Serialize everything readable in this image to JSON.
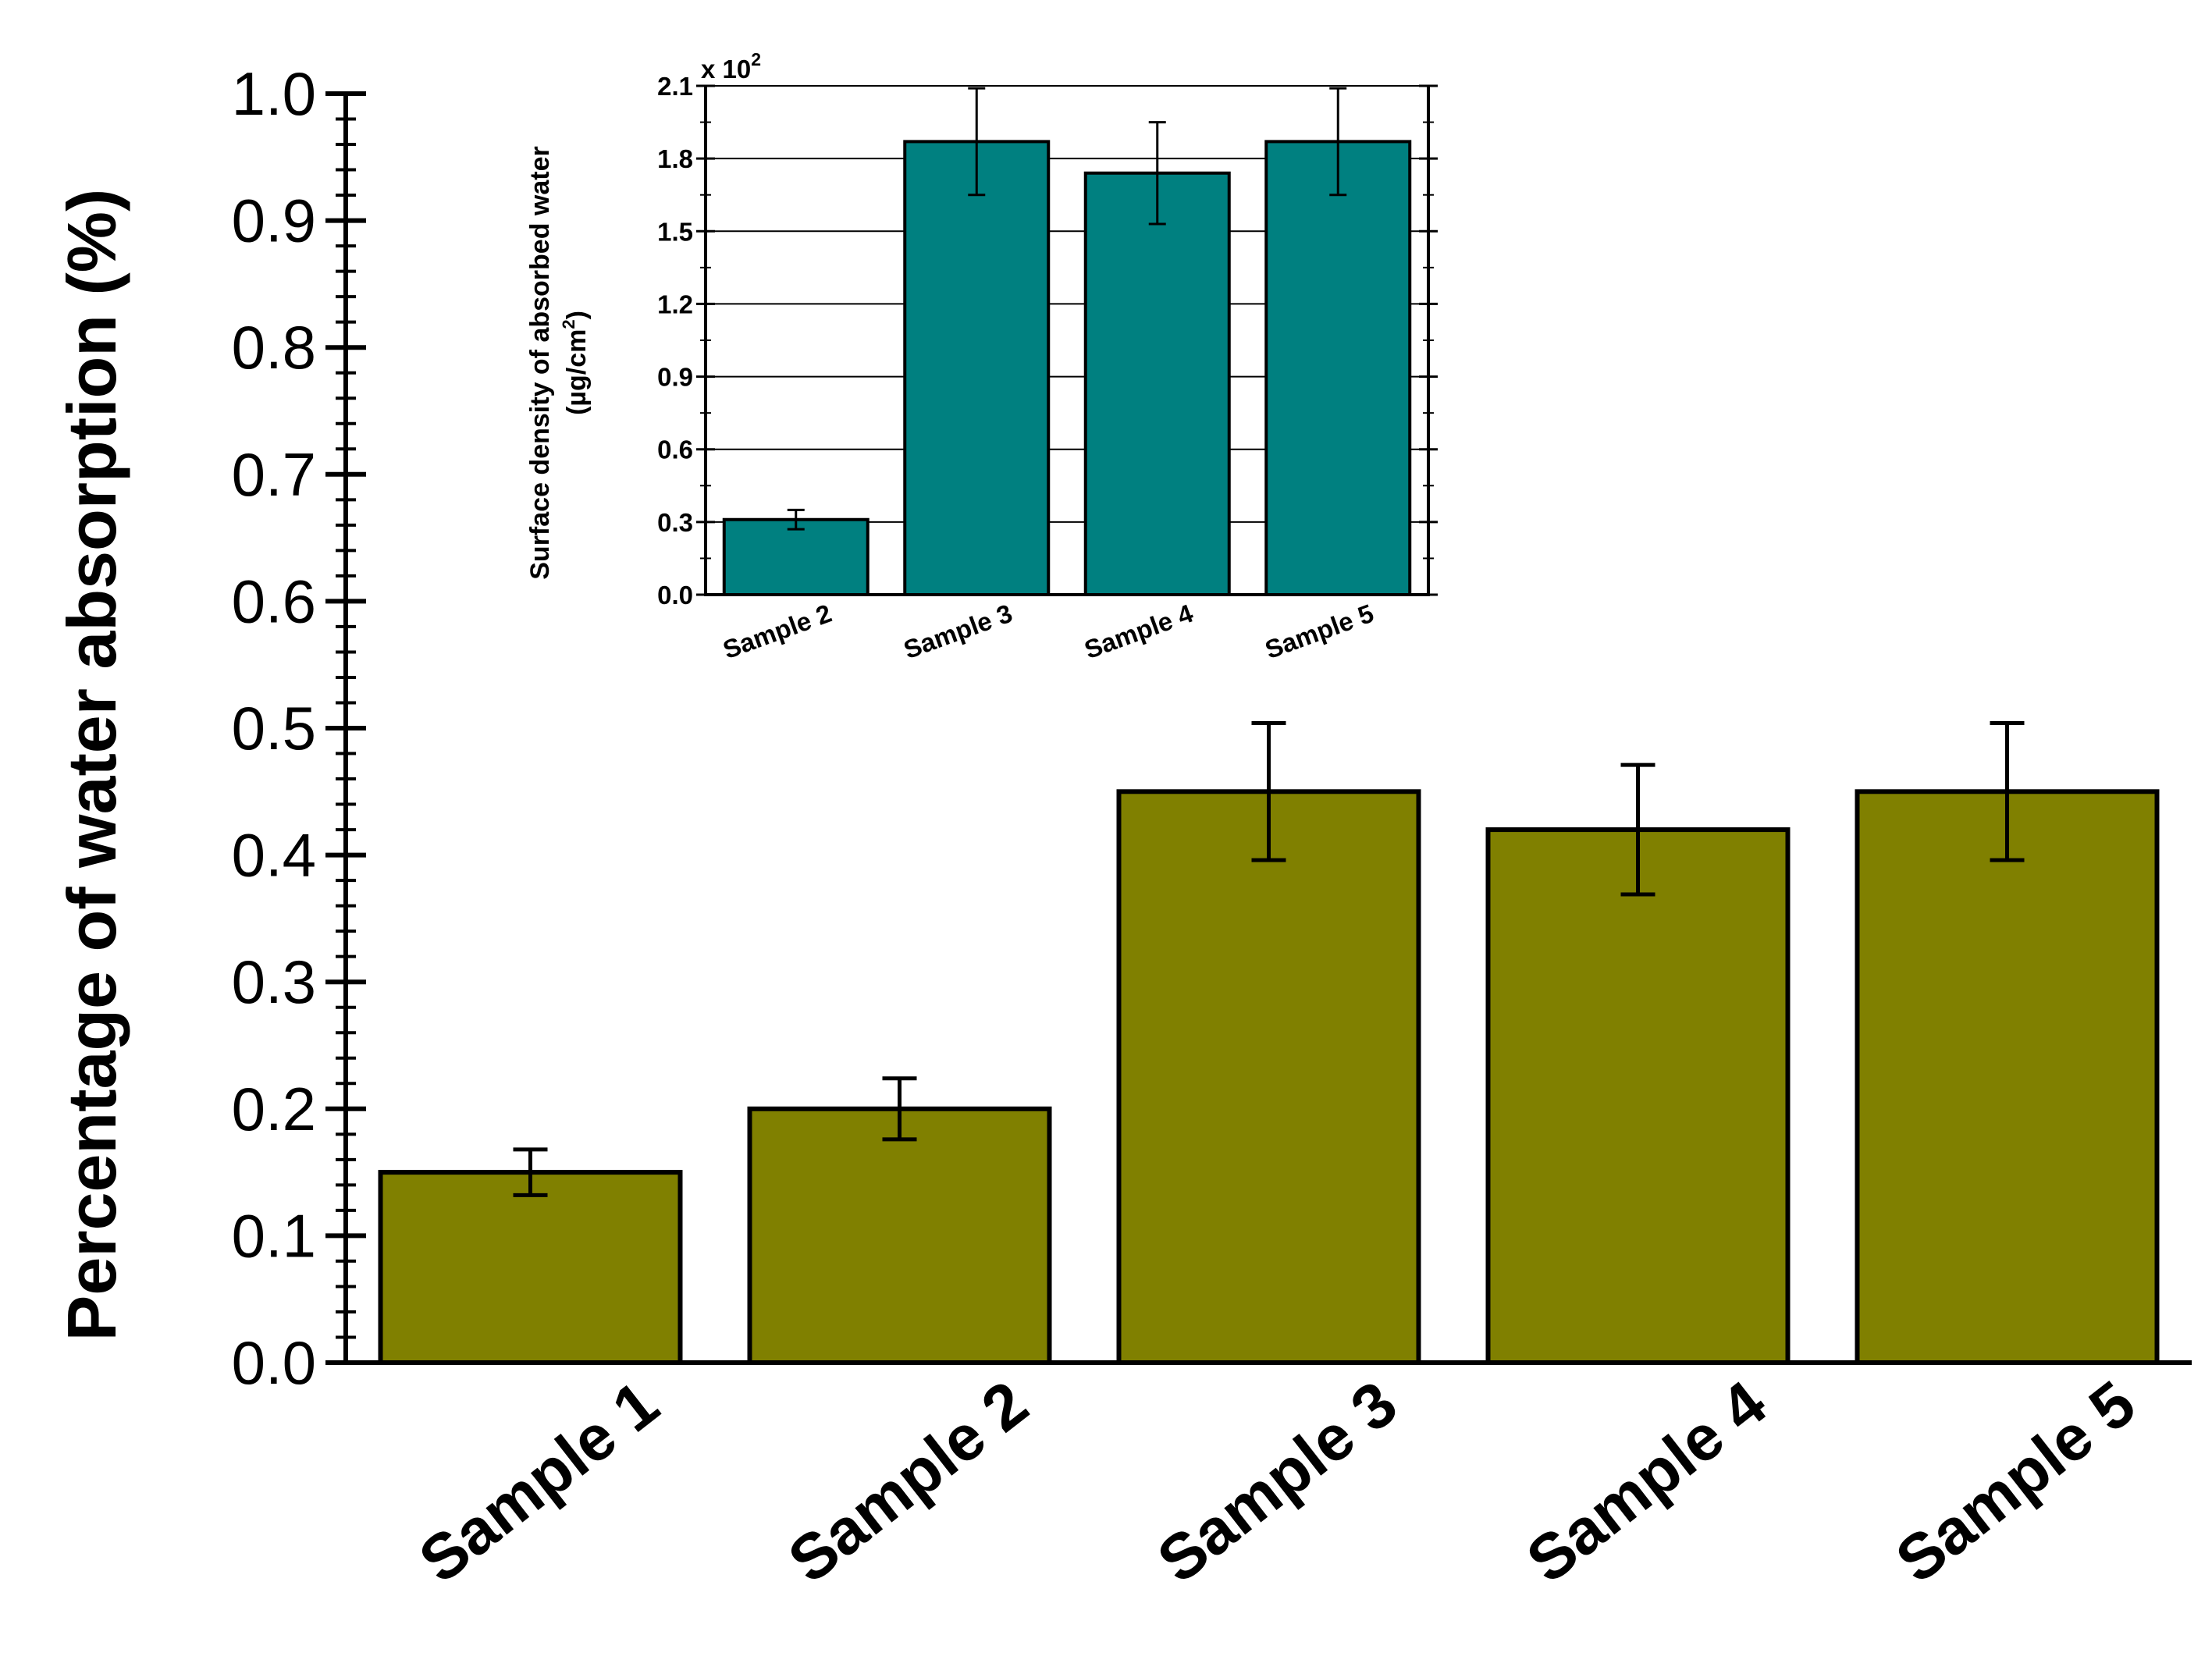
{
  "chart_data": [
    {
      "type": "bar",
      "categories": [
        "Sample 1",
        "Sample 2",
        "Sample 3",
        "Sample 4",
        "Sample 5"
      ],
      "values": [
        0.15,
        0.2,
        0.45,
        0.42,
        0.45
      ],
      "errors": [
        0.018,
        0.024,
        0.054,
        0.051,
        0.054
      ],
      "ylabel": "Percentage of water absorption (%)",
      "ylim": [
        0.0,
        1.0
      ],
      "yticks": [
        "0.0",
        "0.1",
        "0.2",
        "0.3",
        "0.4",
        "0.5",
        "0.6",
        "0.7",
        "0.8",
        "0.9",
        "1.0"
      ],
      "bar_color": "#808000",
      "grid": false
    },
    {
      "type": "bar",
      "categories": [
        "Sample 2",
        "Sample 3",
        "Sample 4",
        "Sample 5"
      ],
      "values": [
        0.31,
        1.87,
        1.74,
        1.87
      ],
      "errors": [
        0.04,
        0.22,
        0.21,
        0.22
      ],
      "ylabel_line1": "Surface density of absorbed water",
      "ylabel_line2_prefix": "(µg/cm",
      "ylabel_line2_sup": "2",
      "ylabel_line2_suffix": ")",
      "scale_prefix": "x 10",
      "scale_sup": "2",
      "ylim": [
        0.0,
        2.1
      ],
      "yticks": [
        "0.0",
        "0.3",
        "0.6",
        "0.9",
        "1.2",
        "1.5",
        "1.8",
        "2.1"
      ],
      "bar_color": "#008080",
      "grid": true
    }
  ]
}
